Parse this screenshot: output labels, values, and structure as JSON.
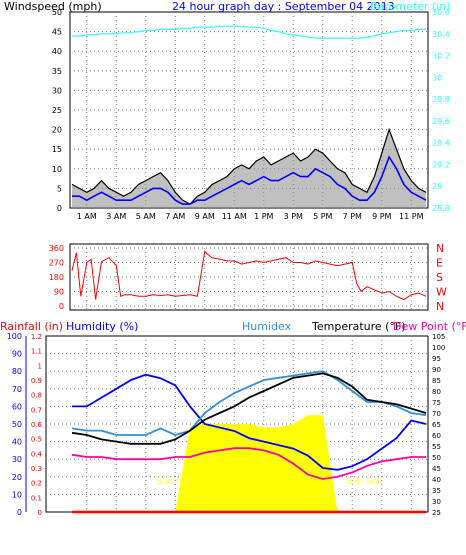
{
  "colors": {
    "background": "#ffffff",
    "plot_bg": "#ffffff",
    "grid": "#7a7a7a",
    "border": "#000000",
    "wind": "#000000",
    "wind_gust_fill": "#8c8c8c",
    "wind_avg": "#0000ff",
    "barometer": "#33ffff",
    "wind_dir": "#ff0000",
    "rain": "#ff0000",
    "humidity": "#0000ff",
    "humidex": "#2f8fd8",
    "temperature": "#000000",
    "dew_point": "#ff00aa",
    "solar": "#ffff00",
    "solar_label": "#ffff55",
    "title": "#0000ff"
  },
  "header": {
    "left_label": "Windspeed (mph)",
    "title": "24 hour graph day : September 04 2013",
    "right_label": "Barometer (in)"
  },
  "bottom_header": {
    "rainfall": "Rainfall (in)",
    "humidity": "Humidity (%)",
    "humidex": "Humidex",
    "temperature": "Temperature (°F)",
    "dew_point": "Dew Point (°F)"
  },
  "x_ticks": [
    "1 AM",
    "3 AM",
    "5 AM",
    "7 AM",
    "9 AM",
    "11 AM",
    "1 PM",
    "3 PM",
    "5 PM",
    "7 PM",
    "9 PM",
    "11 PM"
  ],
  "annotations": {
    "sunrise": "Sun Ris",
    "sunset": "Sun Set"
  },
  "chart_data": [
    {
      "type": "line",
      "panel": "wind_barometer",
      "xlabel": "",
      "x_hours": [
        0,
        0.5,
        1,
        1.5,
        2,
        2.5,
        3,
        3.5,
        4,
        4.5,
        5,
        5.5,
        6,
        6.5,
        7,
        7.5,
        8,
        8.5,
        9,
        9.5,
        10,
        10.5,
        11,
        11.5,
        12,
        12.5,
        13,
        13.5,
        14,
        14.5,
        15,
        15.5,
        16,
        16.5,
        17,
        17.5,
        18,
        18.5,
        19,
        19.5,
        20,
        20.5,
        21,
        21.5,
        22,
        22.5,
        23,
        23.5,
        24
      ],
      "ylim_left": [
        0,
        50
      ],
      "yticks_left": [
        0,
        5,
        10,
        15,
        20,
        25,
        30,
        35,
        40,
        45,
        50
      ],
      "ylim_right": [
        28.8,
        30.6
      ],
      "yticks_right": [
        "28.8",
        "29",
        "29.2",
        "29.4",
        "29.6",
        "29.8",
        "30",
        "30.2",
        "30.4",
        "30.6"
      ],
      "series": [
        {
          "name": "Windspeed (mph)",
          "axis": "left",
          "color": "#000000",
          "values": [
            6,
            5,
            4,
            5,
            7,
            5,
            4,
            3,
            4,
            6,
            7,
            8,
            9,
            7,
            4,
            2,
            1,
            3,
            4,
            6,
            7,
            8,
            10,
            11,
            10,
            12,
            13,
            11,
            12,
            13,
            14,
            12,
            13,
            15,
            14,
            12,
            10,
            9,
            6,
            5,
            4,
            8,
            14,
            20,
            15,
            10,
            7,
            5,
            4
          ]
        },
        {
          "name": "",
          "axis": "left",
          "color": "#0000ff",
          "values": [
            3,
            3,
            2,
            3,
            4,
            3,
            2,
            2,
            2,
            3,
            4,
            5,
            5,
            4,
            2,
            1,
            1,
            2,
            2,
            3,
            4,
            5,
            6,
            7,
            6,
            7,
            8,
            7,
            7,
            8,
            9,
            8,
            8,
            10,
            9,
            8,
            6,
            5,
            3,
            2,
            2,
            4,
            8,
            13,
            10,
            6,
            4,
            3,
            2
          ]
        },
        {
          "name": "Barometer (in)",
          "axis": "right",
          "color": "#33ffff",
          "values": [
            30.38,
            30.38,
            30.39,
            30.39,
            30.4,
            30.4,
            30.4,
            30.41,
            30.41,
            30.42,
            30.43,
            30.43,
            30.44,
            30.44,
            30.44,
            30.45,
            30.45,
            30.46,
            30.46,
            30.46,
            30.47,
            30.47,
            30.47,
            30.47,
            30.46,
            30.46,
            30.45,
            30.43,
            30.42,
            30.4,
            30.39,
            30.38,
            30.37,
            30.36,
            30.36,
            30.36,
            30.36,
            30.36,
            30.36,
            30.36,
            30.37,
            30.38,
            30.4,
            30.41,
            30.42,
            30.43,
            30.43,
            30.44,
            30.44
          ]
        }
      ]
    },
    {
      "type": "scatter",
      "panel": "wind_direction",
      "xlabel": "",
      "ylim": [
        0,
        360
      ],
      "yticks": [
        0,
        90,
        180,
        270,
        360
      ],
      "right_ticks": [
        "N",
        "W",
        "S",
        "E",
        "N"
      ],
      "series": [
        {
          "name": "",
          "color": "#ff0000",
          "x": [
            0,
            0.3,
            0.6,
            1,
            1.3,
            1.6,
            2,
            2.5,
            3,
            3.3,
            3.6,
            4,
            4.5,
            5,
            5.5,
            6,
            6.5,
            7,
            7.5,
            8,
            8.5,
            9,
            9.2,
            9.5,
            10,
            10.5,
            11,
            11.5,
            12,
            12.5,
            13,
            13.5,
            14,
            14.5,
            15,
            15.5,
            16,
            16.5,
            17,
            17.5,
            18,
            18.5,
            19,
            19.3,
            19.6,
            20,
            20.5,
            21,
            21.5,
            22,
            22.5,
            23,
            23.5,
            24
          ],
          "values": [
            220,
            330,
            60,
            270,
            290,
            40,
            275,
            300,
            250,
            60,
            70,
            70,
            60,
            60,
            70,
            65,
            70,
            60,
            65,
            70,
            60,
            340,
            320,
            300,
            290,
            280,
            280,
            260,
            270,
            280,
            270,
            280,
            290,
            300,
            270,
            270,
            260,
            280,
            270,
            260,
            250,
            260,
            270,
            140,
            90,
            120,
            100,
            80,
            90,
            60,
            40,
            70,
            80,
            60
          ]
        }
      ]
    },
    {
      "type": "line",
      "panel": "temp_humidity",
      "xlabel": "",
      "x_hours": [
        0,
        1,
        2,
        3,
        4,
        5,
        6,
        7,
        8,
        9,
        10,
        11,
        12,
        13,
        14,
        15,
        16,
        17,
        18,
        19,
        20,
        21,
        22,
        23,
        24
      ],
      "ylim_left_humidity": [
        0,
        100
      ],
      "yticks_humidity": [
        0,
        10,
        20,
        30,
        40,
        50,
        60,
        70,
        80,
        90,
        100
      ],
      "ylim_left_rain": [
        0,
        1.2
      ],
      "yticks_rain": [
        "0",
        "0.1",
        "0.2",
        "0.3",
        "0.4",
        "0.5",
        "0.6",
        "0.7",
        "0.8",
        "0.9",
        "1",
        "1.1",
        "1.2"
      ],
      "ylim_right": [
        25,
        105
      ],
      "yticks_right": [
        25,
        30,
        35,
        40,
        45,
        50,
        55,
        60,
        65,
        70,
        75,
        80,
        85,
        90,
        95,
        100,
        105
      ],
      "series": [
        {
          "name": "Humidity (%)",
          "axis": "left",
          "color": "#0000ff",
          "values": [
            60,
            60,
            65,
            70,
            75,
            78,
            76,
            72,
            60,
            50,
            48,
            46,
            42,
            40,
            38,
            36,
            32,
            25,
            24,
            26,
            30,
            36,
            42,
            52,
            50
          ]
        },
        {
          "name": "Humidex",
          "axis": "right",
          "color": "#2f8fd8",
          "values": [
            63,
            62,
            62,
            60,
            60,
            60,
            63,
            60,
            62,
            70,
            75,
            79,
            82,
            85,
            86,
            87,
            88,
            89,
            85,
            80,
            75,
            75,
            73,
            70,
            69
          ]
        },
        {
          "name": "Temperature (°F)",
          "axis": "right",
          "color": "#000000",
          "values": [
            61,
            60,
            58,
            57,
            56,
            56,
            56,
            58,
            62,
            67,
            70,
            73,
            77,
            80,
            83,
            86,
            87,
            88,
            86,
            82,
            76,
            75,
            74,
            72,
            70
          ]
        },
        {
          "name": "Dew Point (°F)",
          "axis": "right",
          "color": "#ff00aa",
          "values": [
            51,
            50,
            50,
            49,
            49,
            49,
            49,
            50,
            50,
            52,
            53,
            54,
            54,
            53,
            51,
            47,
            42,
            40,
            41,
            43,
            46,
            48,
            49,
            50,
            50
          ]
        },
        {
          "name": "Rainfall (in)",
          "axis": "left",
          "color": "#ff0000",
          "values": [
            0,
            0,
            0,
            0,
            0,
            0,
            0,
            0,
            0,
            0,
            0,
            0,
            0,
            0,
            0,
            0,
            0,
            0,
            0,
            0,
            0,
            0,
            0,
            0,
            0
          ]
        },
        {
          "name": "",
          "type": "area",
          "axis": "left",
          "color": "#ffff00",
          "values": [
            0,
            0,
            0,
            0,
            0,
            0,
            0,
            0,
            48,
            50,
            50,
            50,
            50,
            48,
            48,
            50,
            55,
            55,
            0,
            0,
            0,
            0,
            0,
            0,
            0
          ]
        }
      ]
    }
  ]
}
